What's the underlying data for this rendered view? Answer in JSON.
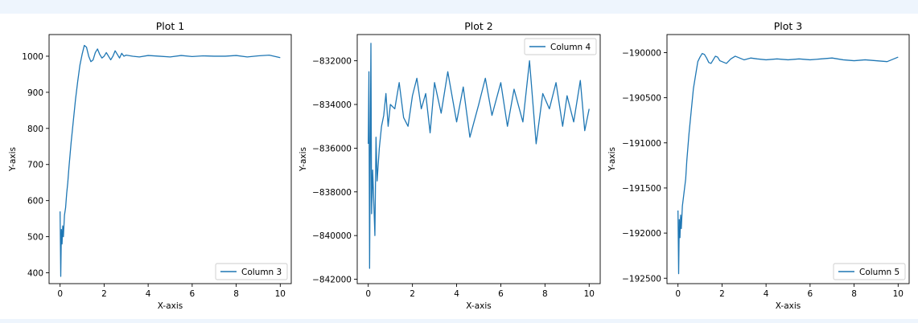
{
  "chart_data": [
    {
      "type": "line",
      "title": "Plot 1",
      "xlabel": "X-axis",
      "ylabel": "Y-axis",
      "xlim": [
        -0.5,
        10.5
      ],
      "ylim": [
        370,
        1060
      ],
      "xticks": [
        0,
        2,
        4,
        6,
        8,
        10
      ],
      "yticks": [
        400,
        500,
        600,
        700,
        800,
        900,
        1000
      ],
      "legend_position": "lower-right",
      "series": [
        {
          "name": "Column 3",
          "color": "#1f77b4",
          "x": [
            0.0,
            0.03,
            0.06,
            0.09,
            0.12,
            0.15,
            0.2,
            0.25,
            0.3,
            0.35,
            0.4,
            0.5,
            0.6,
            0.7,
            0.8,
            0.9,
            1.0,
            1.1,
            1.2,
            1.3,
            1.4,
            1.5,
            1.6,
            1.7,
            1.8,
            1.9,
            2.0,
            2.1,
            2.2,
            2.3,
            2.4,
            2.5,
            2.6,
            2.7,
            2.8,
            2.9,
            3.0,
            3.3,
            3.6,
            4.0,
            4.5,
            5.0,
            5.5,
            6.0,
            6.5,
            7.0,
            7.5,
            8.0,
            8.5,
            9.0,
            9.5,
            10.0
          ],
          "values": [
            570,
            390,
            520,
            480,
            530,
            500,
            560,
            580,
            620,
            650,
            690,
            760,
            820,
            880,
            930,
            975,
            1005,
            1030,
            1025,
            1000,
            985,
            990,
            1010,
            1020,
            1005,
            995,
            1000,
            1010,
            1000,
            990,
            1000,
            1015,
            1005,
            995,
            1008,
            1000,
            1003,
            1000,
            998,
            1002,
            1000,
            998,
            1002,
            999,
            1001,
            1000,
            1000,
            1002,
            998,
            1001,
            1003,
            996
          ]
        }
      ]
    },
    {
      "type": "line",
      "title": "Plot 2",
      "xlabel": "X-axis",
      "ylabel": "Y-axis",
      "xlim": [
        -0.5,
        10.5
      ],
      "ylim": [
        -842200,
        -830800
      ],
      "xticks": [
        0,
        2,
        4,
        6,
        8,
        10
      ],
      "yticks": [
        -842000,
        -840000,
        -838000,
        -836000,
        -834000,
        -832000
      ],
      "yticklabels": [
        "−842000",
        "−840000",
        "−838000",
        "−836000",
        "−834000",
        "−832000"
      ],
      "legend_position": "upper-right",
      "series": [
        {
          "name": "Column 4",
          "color": "#1f77b4",
          "x": [
            0.0,
            0.03,
            0.06,
            0.09,
            0.12,
            0.15,
            0.2,
            0.25,
            0.3,
            0.35,
            0.4,
            0.5,
            0.6,
            0.7,
            0.8,
            0.9,
            1.0,
            1.2,
            1.4,
            1.6,
            1.8,
            2.0,
            2.2,
            2.4,
            2.6,
            2.8,
            3.0,
            3.3,
            3.6,
            4.0,
            4.3,
            4.6,
            5.0,
            5.3,
            5.6,
            6.0,
            6.3,
            6.6,
            7.0,
            7.3,
            7.6,
            7.9,
            8.2,
            8.5,
            8.8,
            9.0,
            9.3,
            9.6,
            9.8,
            10.0
          ],
          "values": [
            -835800,
            -832500,
            -841500,
            -836000,
            -831200,
            -839000,
            -837000,
            -838500,
            -840000,
            -835500,
            -837500,
            -836000,
            -835000,
            -834500,
            -833500,
            -835000,
            -834000,
            -834200,
            -833000,
            -834600,
            -835000,
            -833600,
            -832800,
            -834200,
            -833500,
            -835300,
            -833000,
            -834400,
            -832500,
            -834800,
            -833200,
            -835500,
            -834000,
            -832800,
            -834500,
            -833000,
            -835000,
            -833300,
            -834800,
            -832000,
            -835800,
            -833500,
            -834200,
            -833000,
            -835000,
            -833600,
            -834800,
            -832900,
            -835200,
            -834200
          ]
        }
      ]
    },
    {
      "type": "line",
      "title": "Plot 3",
      "xlabel": "X-axis",
      "ylabel": "Y-axis",
      "xlim": [
        -0.5,
        10.5
      ],
      "ylim": [
        -192560,
        -189800
      ],
      "xticks": [
        0,
        2,
        4,
        6,
        8,
        10
      ],
      "yticks": [
        -192500,
        -192000,
        -191500,
        -191000,
        -190500,
        -190000
      ],
      "yticklabels": [
        "−192500",
        "−192000",
        "−191500",
        "−191000",
        "−190500",
        "−190000"
      ],
      "legend_position": "lower-right",
      "series": [
        {
          "name": "Column 5",
          "color": "#1f77b4",
          "x": [
            0.0,
            0.03,
            0.06,
            0.09,
            0.12,
            0.15,
            0.2,
            0.25,
            0.3,
            0.35,
            0.4,
            0.5,
            0.6,
            0.7,
            0.8,
            0.9,
            1.0,
            1.1,
            1.2,
            1.3,
            1.4,
            1.5,
            1.6,
            1.7,
            1.8,
            1.9,
            2.0,
            2.2,
            2.4,
            2.6,
            2.8,
            3.0,
            3.3,
            3.6,
            4.0,
            4.5,
            5.0,
            5.5,
            6.0,
            6.5,
            7.0,
            7.5,
            8.0,
            8.5,
            9.0,
            9.5,
            10.0
          ],
          "values": [
            -191750,
            -192450,
            -191850,
            -192050,
            -191800,
            -191950,
            -191700,
            -191600,
            -191500,
            -191400,
            -191200,
            -190900,
            -190650,
            -190400,
            -190250,
            -190100,
            -190050,
            -190010,
            -190020,
            -190060,
            -190110,
            -190120,
            -190080,
            -190040,
            -190050,
            -190090,
            -190100,
            -190120,
            -190070,
            -190040,
            -190060,
            -190080,
            -190060,
            -190070,
            -190080,
            -190070,
            -190080,
            -190070,
            -190080,
            -190070,
            -190060,
            -190080,
            -190090,
            -190080,
            -190090,
            -190100,
            -190050
          ]
        }
      ]
    }
  ]
}
